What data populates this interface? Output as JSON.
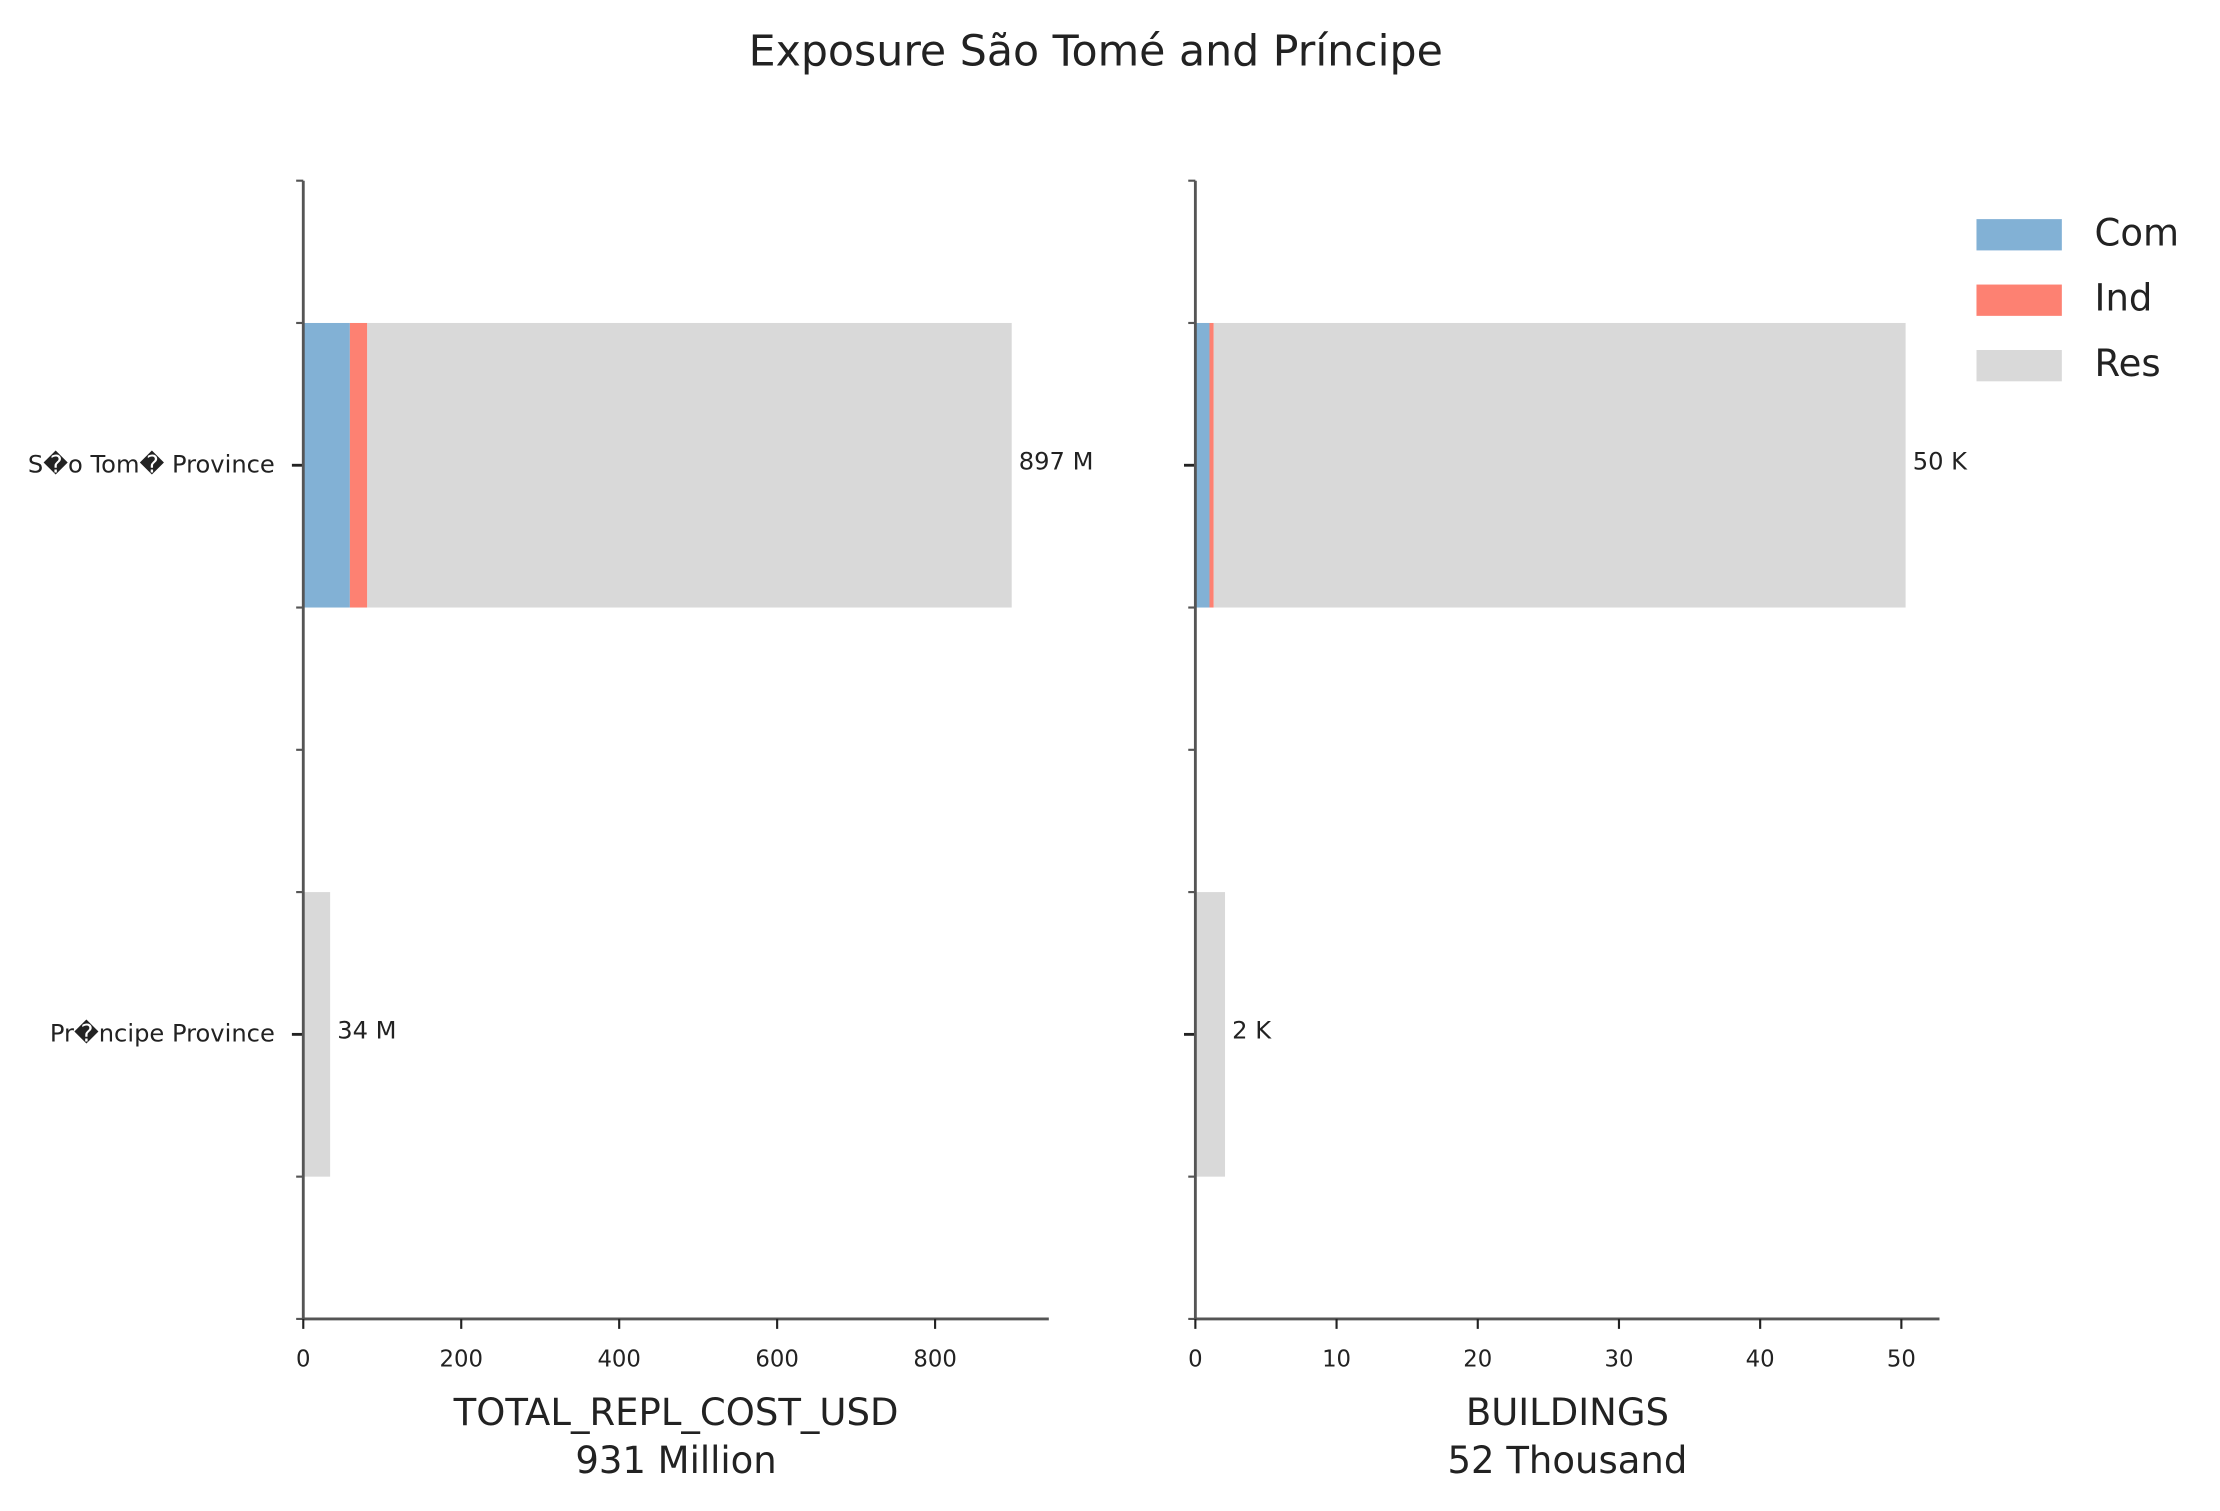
{
  "title": "Exposure São Tomé and Príncipe",
  "chart_data": [
    {
      "type": "barh",
      "xlabel": "TOTAL_REPL_COST_USD",
      "summary": "931 Million",
      "categories": [
        "S�o Tom� Province",
        "Pr�ncipe Province"
      ],
      "series": [
        {
          "name": "Com",
          "color": "#82b1d5",
          "values": [
            59,
            0
          ]
        },
        {
          "name": "Ind",
          "color": "#fd8172",
          "values": [
            22,
            0
          ]
        },
        {
          "name": "Res",
          "color": "#d9d9d9",
          "values": [
            816,
            34
          ]
        }
      ],
      "totals": [
        897,
        34
      ],
      "total_labels": [
        "897 M",
        "34 M"
      ],
      "xlim": [
        0,
        944
      ],
      "xticks": [
        0,
        200,
        400,
        600,
        800
      ],
      "show_legend": false
    },
    {
      "type": "barh",
      "xlabel": "BUILDINGS",
      "summary": "52 Thousand",
      "series": [
        {
          "name": "Com",
          "color": "#82b1d5",
          "values": [
            1.0,
            0
          ]
        },
        {
          "name": "Ind",
          "color": "#fd8172",
          "values": [
            0.3,
            0
          ]
        },
        {
          "name": "Res",
          "color": "#d9d9d9",
          "values": [
            49.0,
            2.1
          ]
        }
      ],
      "totals": [
        50.3,
        2.1
      ],
      "total_labels": [
        "50 K",
        "2 K"
      ],
      "xlim": [
        0,
        52.7
      ],
      "xticks": [
        0,
        10,
        20,
        30,
        40,
        50
      ],
      "show_legend": true
    }
  ]
}
